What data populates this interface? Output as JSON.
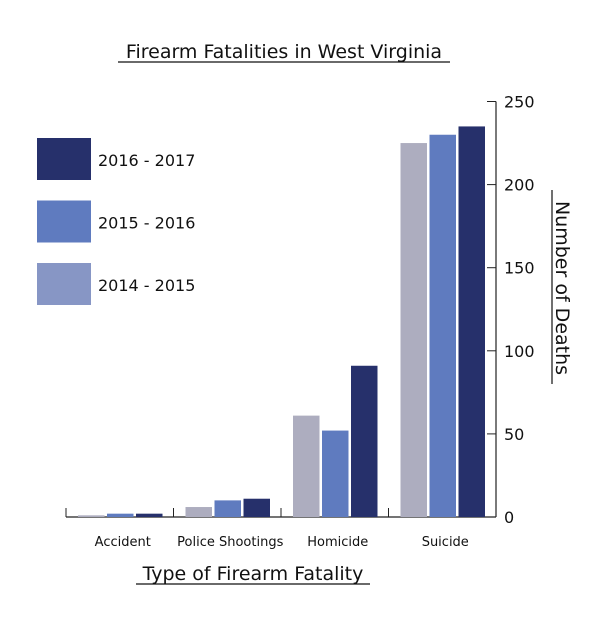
{
  "chart_data": {
    "type": "bar",
    "title": "Firearm Fatalities in West Virginia",
    "xlabel": "Type of Firearm Fatality",
    "ylabel": "Number of Deaths",
    "categories": [
      "Accident",
      "Police Shootings",
      "Homicide",
      "Suicide"
    ],
    "series": [
      {
        "name": "2014 - 2015",
        "values": [
          1,
          6,
          61,
          225
        ],
        "color": "#adadbf",
        "legend_color": "#8796c5"
      },
      {
        "name": "2015 - 2016",
        "values": [
          2,
          10,
          52,
          230
        ],
        "color": "#5f7bbf",
        "legend_color": "#5f7bbf"
      },
      {
        "name": "2016 - 2017",
        "values": [
          2,
          11,
          91,
          235
        ],
        "color": "#26306b",
        "legend_color": "#26306b"
      }
    ],
    "legend_order": [
      "2016 - 2017",
      "2015 - 2016",
      "2014 - 2015"
    ],
    "yticks": [
      0,
      50,
      100,
      150,
      200,
      250
    ],
    "ylim": [
      0,
      250
    ],
    "y_axis_side": "right",
    "grid": false,
    "legend_position": "top-left"
  }
}
